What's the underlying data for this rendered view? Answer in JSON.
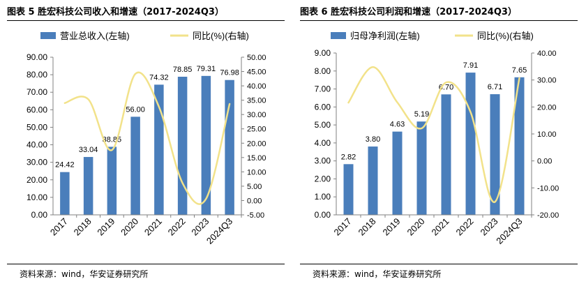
{
  "charts": [
    {
      "title": "图表 5 胜宏科技公司收入和增速（2017-2024Q3）",
      "source": "资料来源：wind，华安证券研究所",
      "legend": {
        "bar": "营业总收入(左轴)",
        "line": "同比(%)(右轴)"
      },
      "colors": {
        "bar": "#4a7ebb",
        "line": "#f2e28a",
        "axis": "#808080"
      },
      "chart_data": {
        "type": "bar",
        "categories": [
          "2017",
          "2018",
          "2019",
          "2020",
          "2021",
          "2022",
          "2023",
          "2024Q3"
        ],
        "series": [
          {
            "name": "营业总收入(左轴)",
            "type": "bar",
            "axis": "left",
            "values": [
              24.42,
              33.04,
              38.85,
              56.0,
              74.32,
              78.85,
              79.31,
              76.98
            ],
            "labels": [
              "24.42",
              "33.04",
              "38.85",
              "56.00",
              "74.32",
              "78.85",
              "79.31",
              "76.98"
            ]
          },
          {
            "name": "同比(%)(右轴)",
            "type": "line",
            "smooth": true,
            "axis": "right",
            "values": [
              34.0,
              35.3,
              17.6,
              44.2,
              32.7,
              6.1,
              0.6,
              33.7
            ]
          }
        ],
        "y_left": {
          "min": 0,
          "max": 90,
          "step": 10,
          "ticks": [
            "0.00",
            "10.00",
            "20.00",
            "30.00",
            "40.00",
            "50.00",
            "60.00",
            "70.00",
            "80.00",
            "90.00"
          ]
        },
        "y_right": {
          "min": -5,
          "max": 50,
          "step": 5,
          "ticks": [
            "-5.00",
            "0.00",
            "5.00",
            "10.00",
            "15.00",
            "20.00",
            "25.00",
            "30.00",
            "35.00",
            "40.00",
            "45.00",
            "50.00"
          ]
        },
        "grid": false,
        "legend_position": "top"
      }
    },
    {
      "title": "图表 6 胜宏科技公司利润和增速（2017-2024Q3）",
      "source": "资料来源：wind，华安证券研究所",
      "legend": {
        "bar": "归母净利润(左轴)",
        "line": "同比(%)(右轴)"
      },
      "colors": {
        "bar": "#4a7ebb",
        "line": "#f2e28a",
        "axis": "#808080"
      },
      "chart_data": {
        "type": "bar",
        "categories": [
          "2017",
          "2018",
          "2019",
          "2020",
          "2021",
          "2022",
          "2023",
          "2024Q3"
        ],
        "series": [
          {
            "name": "归母净利润(左轴)",
            "type": "bar",
            "axis": "left",
            "values": [
              2.82,
              3.8,
              4.63,
              5.19,
              6.7,
              7.91,
              6.71,
              7.65
            ],
            "labels": [
              "2.82",
              "3.80",
              "4.63",
              "5.19",
              "6.70",
              "7.91",
              "6.71",
              "7.65"
            ]
          },
          {
            "name": "同比(%)(右轴)",
            "type": "line",
            "smooth": true,
            "axis": "right",
            "values": [
              21.6,
              34.8,
              21.7,
              12.1,
              29.1,
              18.1,
              -15.2,
              30.7
            ]
          }
        ],
        "y_left": {
          "min": 0,
          "max": 9,
          "step": 1,
          "ticks": [
            "0.00",
            "1.00",
            "2.00",
            "3.00",
            "4.00",
            "5.00",
            "6.00",
            "7.00",
            "8.00",
            "9.00"
          ]
        },
        "y_right": {
          "min": -20,
          "max": 40,
          "step": 10,
          "ticks": [
            "-20.00",
            "-10.00",
            "0.00",
            "10.00",
            "20.00",
            "30.00",
            "40.00"
          ]
        },
        "grid": false,
        "legend_position": "top"
      }
    }
  ]
}
